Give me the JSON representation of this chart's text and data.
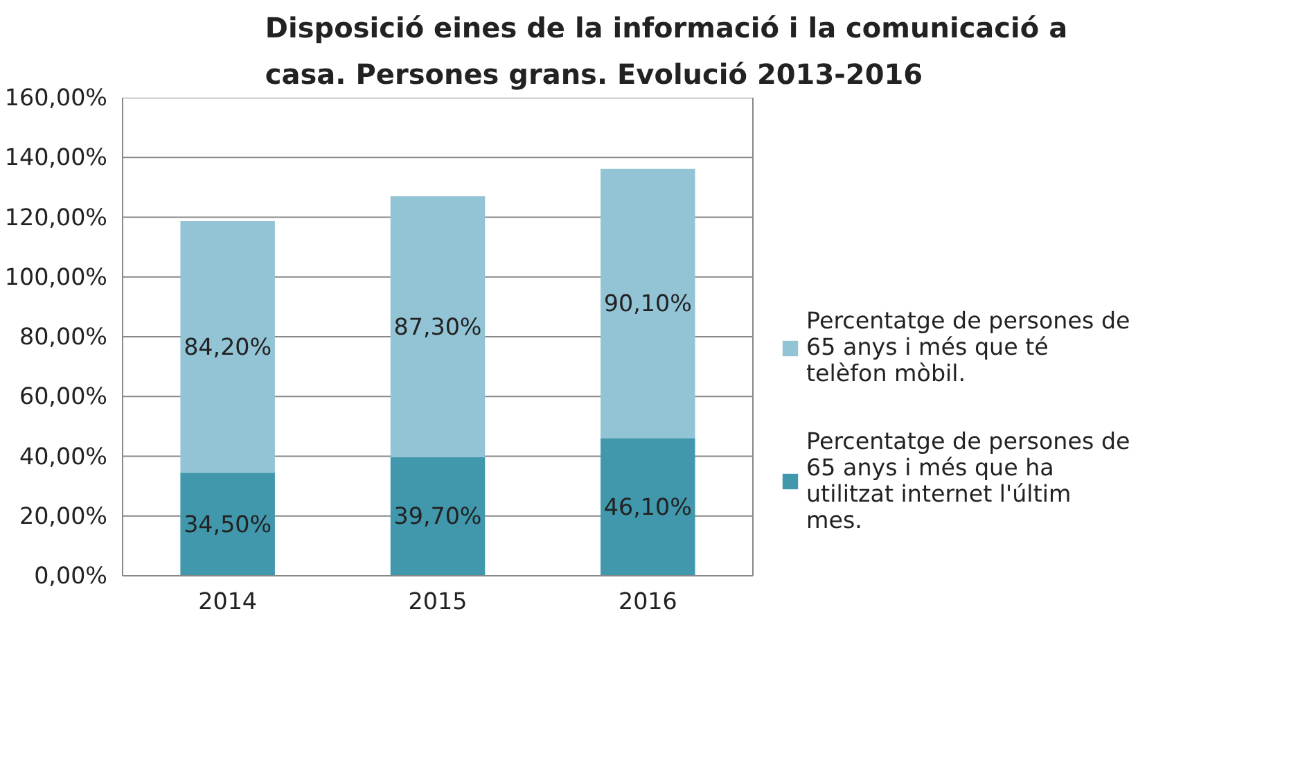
{
  "chart_data": {
    "type": "bar",
    "stacked": true,
    "title": "Disposició eines de la informació i la comunicació a casa. Persones grans. Evolució 2013-2016",
    "categories": [
      "2014",
      "2015",
      "2016"
    ],
    "series": [
      {
        "name": "Percentatge de persones de 65 anys i més que ha utilitzat internet l'últim mes.",
        "color": "#4198ac",
        "values": [
          34.5,
          39.7,
          46.1
        ],
        "value_labels": [
          "34,50%",
          "39,70%",
          "46,10%"
        ]
      },
      {
        "name": "Percentatge de persones de 65 anys i més que té telèfon mòbil.",
        "color": "#93c4d5",
        "values": [
          84.2,
          87.3,
          90.1
        ],
        "value_labels": [
          "84,20%",
          "87,30%",
          "90,10%"
        ]
      }
    ],
    "ylim": [
      0,
      160
    ],
    "yticks": [
      {
        "value": 0,
        "label": "0,00%"
      },
      {
        "value": 20,
        "label": "20,00%"
      },
      {
        "value": 40,
        "label": "40,00%"
      },
      {
        "value": 60,
        "label": "60,00%"
      },
      {
        "value": 80,
        "label": "80,00%"
      },
      {
        "value": 100,
        "label": "100,00%"
      },
      {
        "value": 120,
        "label": "120,00%"
      },
      {
        "value": 140,
        "label": "140,00%"
      },
      {
        "value": 160,
        "label": "160,00%"
      }
    ],
    "grid": "y",
    "legend": "right"
  }
}
